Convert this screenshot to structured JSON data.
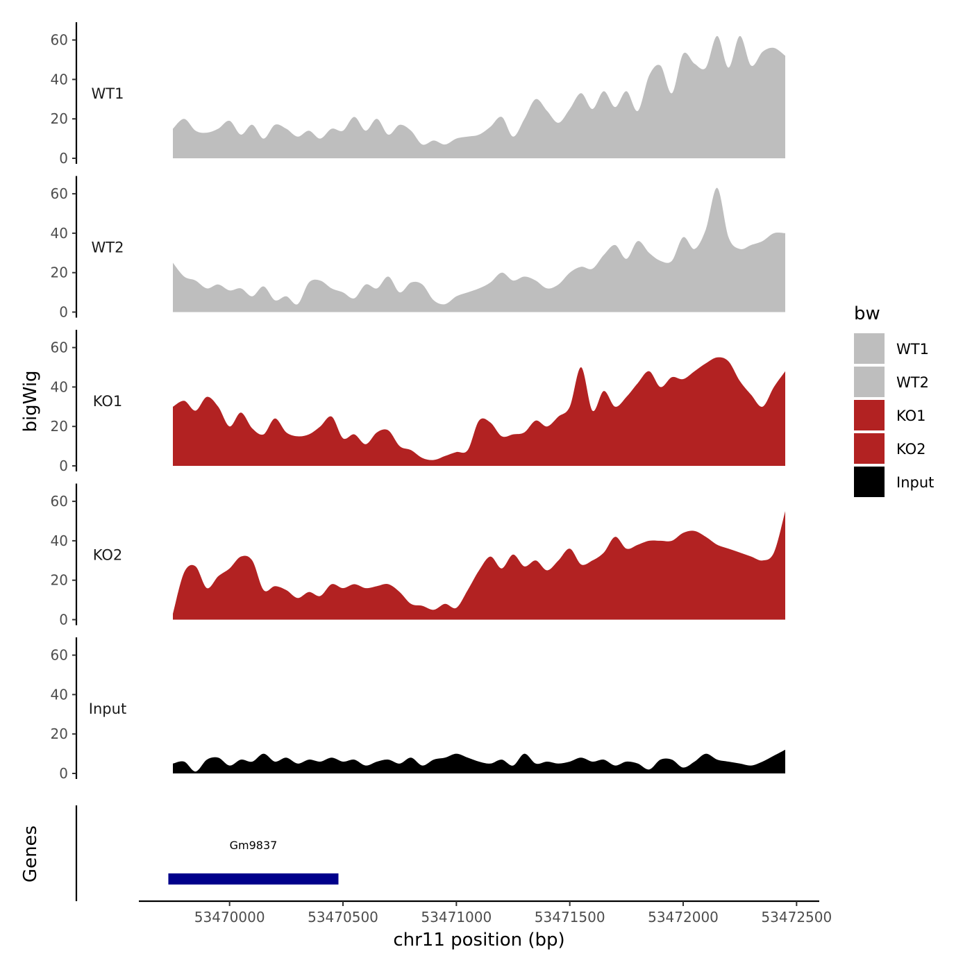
{
  "chart_data": {
    "type": "area",
    "ylabel": "bigWig",
    "xlabel": "chr11 position (bp)",
    "xlim": [
      53469600,
      53472600
    ],
    "ylim": [
      0,
      68
    ],
    "yticks": [
      0,
      20,
      40,
      60
    ],
    "xticks": [
      53470000,
      53470500,
      53471000,
      53471500,
      53472000,
      53472500
    ],
    "xtick_labels": [
      "53470000",
      "53470500",
      "53471000",
      "53471500",
      "53472000",
      "53472500"
    ],
    "legend": {
      "title": "bw",
      "placement": "right",
      "entries": [
        {
          "label": "WT1",
          "color": "#bebebe"
        },
        {
          "label": "WT2",
          "color": "#bebebe"
        },
        {
          "label": "KO1",
          "color": "#b22222"
        },
        {
          "label": "KO2",
          "color": "#b22222"
        },
        {
          "label": "Input",
          "color": "#000000"
        }
      ]
    },
    "tracks": [
      {
        "name": "WT1",
        "color": "#bebebe",
        "x": [
          53469750,
          53469800,
          53469850,
          53469900,
          53469950,
          53470000,
          53470050,
          53470100,
          53470150,
          53470200,
          53470250,
          53470300,
          53470350,
          53470400,
          53470450,
          53470500,
          53470550,
          53470600,
          53470650,
          53470700,
          53470750,
          53470800,
          53470850,
          53470900,
          53470950,
          53471000,
          53471050,
          53471100,
          53471150,
          53471200,
          53471250,
          53471300,
          53471350,
          53471400,
          53471450,
          53471500,
          53471550,
          53471600,
          53471650,
          53471700,
          53471750,
          53471800,
          53471850,
          53471900,
          53471950,
          53472000,
          53472050,
          53472100,
          53472150,
          53472200,
          53472250,
          53472300,
          53472350,
          53472400,
          53472450
        ],
        "y": [
          15,
          20,
          14,
          13,
          15,
          19,
          12,
          17,
          10,
          17,
          15,
          11,
          14,
          10,
          15,
          14,
          21,
          14,
          20,
          12,
          17,
          14,
          7,
          9,
          7,
          10,
          11,
          12,
          16,
          21,
          11,
          20,
          30,
          24,
          18,
          25,
          33,
          25,
          34,
          26,
          34,
          24,
          42,
          47,
          33,
          53,
          48,
          46,
          62,
          46,
          62,
          47,
          54,
          56,
          52
        ]
      },
      {
        "name": "WT2",
        "color": "#bebebe",
        "x": [
          53469750,
          53469800,
          53469850,
          53469900,
          53469950,
          53470000,
          53470050,
          53470100,
          53470150,
          53470200,
          53470250,
          53470300,
          53470350,
          53470400,
          53470450,
          53470500,
          53470550,
          53470600,
          53470650,
          53470700,
          53470750,
          53470800,
          53470850,
          53470900,
          53470950,
          53471000,
          53471050,
          53471100,
          53471150,
          53471200,
          53471250,
          53471300,
          53471350,
          53471400,
          53471450,
          53471500,
          53471550,
          53471600,
          53471650,
          53471700,
          53471750,
          53471800,
          53471850,
          53471900,
          53471950,
          53472000,
          53472050,
          53472100,
          53472150,
          53472200,
          53472250,
          53472300,
          53472350,
          53472400,
          53472450
        ],
        "y": [
          25,
          18,
          16,
          12,
          14,
          11,
          12,
          8,
          13,
          6,
          8,
          4,
          15,
          16,
          12,
          10,
          7,
          14,
          12,
          18,
          10,
          15,
          14,
          6,
          4,
          8,
          10,
          12,
          15,
          20,
          16,
          18,
          16,
          12,
          14,
          20,
          23,
          22,
          29,
          34,
          27,
          36,
          30,
          26,
          26,
          38,
          32,
          42,
          63,
          38,
          32,
          34,
          36,
          40,
          40
        ]
      },
      {
        "name": "KO1",
        "color": "#b22222",
        "x": [
          53469750,
          53469800,
          53469850,
          53469900,
          53469950,
          53470000,
          53470050,
          53470100,
          53470150,
          53470200,
          53470250,
          53470300,
          53470350,
          53470400,
          53470450,
          53470500,
          53470550,
          53470600,
          53470650,
          53470700,
          53470750,
          53470800,
          53470850,
          53470900,
          53470950,
          53471000,
          53471050,
          53471100,
          53471150,
          53471200,
          53471250,
          53471300,
          53471350,
          53471400,
          53471450,
          53471500,
          53471550,
          53471600,
          53471650,
          53471700,
          53471750,
          53471800,
          53471850,
          53471900,
          53471950,
          53472000,
          53472050,
          53472100,
          53472150,
          53472200,
          53472250,
          53472300,
          53472350,
          53472400,
          53472450
        ],
        "y": [
          30,
          33,
          28,
          35,
          30,
          20,
          27,
          19,
          16,
          24,
          17,
          15,
          16,
          20,
          25,
          14,
          16,
          11,
          17,
          18,
          10,
          8,
          4,
          3,
          5,
          7,
          8,
          23,
          22,
          15,
          16,
          17,
          23,
          20,
          25,
          30,
          50,
          28,
          38,
          30,
          35,
          42,
          48,
          40,
          45,
          44,
          48,
          52,
          55,
          53,
          43,
          36,
          30,
          40,
          48
        ]
      },
      {
        "name": "KO2",
        "color": "#b22222",
        "x": [
          53469750,
          53469800,
          53469850,
          53469900,
          53469950,
          53470000,
          53470050,
          53470100,
          53470150,
          53470200,
          53470250,
          53470300,
          53470350,
          53470400,
          53470450,
          53470500,
          53470550,
          53470600,
          53470650,
          53470700,
          53470750,
          53470800,
          53470850,
          53470900,
          53470950,
          53471000,
          53471050,
          53471100,
          53471150,
          53471200,
          53471250,
          53471300,
          53471350,
          53471400,
          53471450,
          53471500,
          53471550,
          53471600,
          53471650,
          53471700,
          53471750,
          53471800,
          53471850,
          53471900,
          53471950,
          53472000,
          53472050,
          53472100,
          53472150,
          53472200,
          53472250,
          53472300,
          53472350,
          53472400,
          53472450
        ],
        "y": [
          3,
          24,
          27,
          16,
          22,
          26,
          32,
          30,
          15,
          17,
          15,
          11,
          14,
          12,
          18,
          16,
          18,
          16,
          17,
          18,
          14,
          8,
          7,
          5,
          8,
          6,
          15,
          25,
          32,
          26,
          33,
          27,
          30,
          25,
          30,
          36,
          28,
          30,
          34,
          42,
          36,
          38,
          40,
          40,
          40,
          44,
          45,
          42,
          38,
          36,
          34,
          32,
          30,
          34,
          55
        ]
      },
      {
        "name": "Input",
        "color": "#000000",
        "x": [
          53469750,
          53469800,
          53469850,
          53469900,
          53469950,
          53470000,
          53470050,
          53470100,
          53470150,
          53470200,
          53470250,
          53470300,
          53470350,
          53470400,
          53470450,
          53470500,
          53470550,
          53470600,
          53470650,
          53470700,
          53470750,
          53470800,
          53470850,
          53470900,
          53470950,
          53471000,
          53471050,
          53471100,
          53471150,
          53471200,
          53471250,
          53471300,
          53471350,
          53471400,
          53471450,
          53471500,
          53471550,
          53471600,
          53471650,
          53471700,
          53471750,
          53471800,
          53471850,
          53471900,
          53471950,
          53472000,
          53472050,
          53472100,
          53472150,
          53472200,
          53472250,
          53472300,
          53472350,
          53472400,
          53472450
        ],
        "y": [
          5,
          6,
          1,
          7,
          8,
          4,
          7,
          6,
          10,
          6,
          8,
          5,
          7,
          6,
          8,
          6,
          7,
          4,
          6,
          7,
          5,
          8,
          4,
          7,
          8,
          10,
          8,
          6,
          5,
          7,
          4,
          10,
          5,
          6,
          5,
          6,
          8,
          6,
          7,
          4,
          6,
          5,
          2,
          7,
          7,
          3,
          6,
          10,
          7,
          6,
          5,
          4,
          6,
          9,
          12
        ]
      }
    ],
    "genes": [
      {
        "name": "Gm9837",
        "start": 53469730,
        "end": 53470480,
        "color": "#00008b"
      }
    ],
    "genes_label": "Genes"
  }
}
